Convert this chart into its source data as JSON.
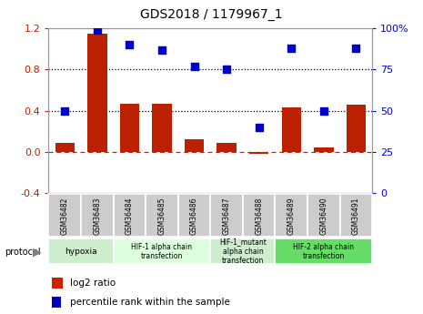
{
  "title": "GDS2018 / 1179967_1",
  "samples": [
    "GSM36482",
    "GSM36483",
    "GSM36484",
    "GSM36485",
    "GSM36486",
    "GSM36487",
    "GSM36488",
    "GSM36489",
    "GSM36490",
    "GSM36491"
  ],
  "log2_ratio": [
    0.09,
    1.15,
    0.47,
    0.47,
    0.12,
    0.09,
    -0.02,
    0.43,
    0.04,
    0.46
  ],
  "percentile_rank": [
    50,
    99,
    90,
    87,
    77,
    75,
    40,
    88,
    50,
    88
  ],
  "ylim_left": [
    -0.4,
    1.2
  ],
  "ylim_right": [
    0,
    100
  ],
  "yticks_left": [
    -0.4,
    0.0,
    0.4,
    0.8,
    1.2
  ],
  "yticks_right": [
    0,
    25,
    50,
    75,
    100
  ],
  "hlines": [
    0.4,
    0.8
  ],
  "bar_color": "#bb2000",
  "dot_color": "#0000cc",
  "dot_size": 28,
  "protocols": [
    {
      "label": "hypoxia",
      "start": 0,
      "end": 2,
      "color": "#cceecc",
      "fontsize": 8
    },
    {
      "label": "HIF-1 alpha chain\ntransfection",
      "start": 2,
      "end": 5,
      "color": "#ddffdd",
      "fontsize": 7
    },
    {
      "label": "HIF-1_mutant\nalpha chain\ntransfection",
      "start": 5,
      "end": 7,
      "color": "#cceecc",
      "fontsize": 7
    },
    {
      "label": "HIF-2 alpha chain\ntransfection",
      "start": 7,
      "end": 10,
      "color": "#66dd66",
      "fontsize": 7
    }
  ],
  "protocol_label": "protocol",
  "legend_log2": "log2 ratio",
  "legend_pct": "percentile rank within the sample",
  "bar_color_legend": "#cc2200",
  "dot_color_legend": "#0000bb",
  "sample_bg_color": "#cccccc",
  "zero_line_color": "#cc2200",
  "spine_color": "#999999"
}
